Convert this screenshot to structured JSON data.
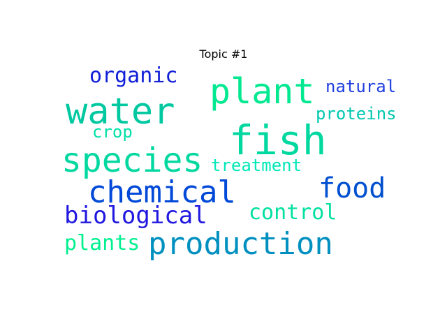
{
  "figure": {
    "title": "Topic #1",
    "words": [
      {
        "text": "fish",
        "color": "#00d8a0"
      },
      {
        "text": "water",
        "color": "#00c8a0"
      },
      {
        "text": "plant",
        "color": "#00e890"
      },
      {
        "text": "species",
        "color": "#00d8a0"
      },
      {
        "text": "chemical",
        "color": "#0048d8"
      },
      {
        "text": "production",
        "color": "#0090c0"
      },
      {
        "text": "food",
        "color": "#0050d0"
      },
      {
        "text": "organic",
        "color": "#1020d8"
      },
      {
        "text": "biological",
        "color": "#2018e0"
      },
      {
        "text": "control",
        "color": "#00e0a0"
      },
      {
        "text": "plants",
        "color": "#00f090"
      },
      {
        "text": "natural",
        "color": "#2040e0"
      },
      {
        "text": "proteins",
        "color": "#00c8b0"
      },
      {
        "text": "crop",
        "color": "#00e0a8"
      },
      {
        "text": "treatment",
        "color": "#00e8b8"
      }
    ]
  }
}
